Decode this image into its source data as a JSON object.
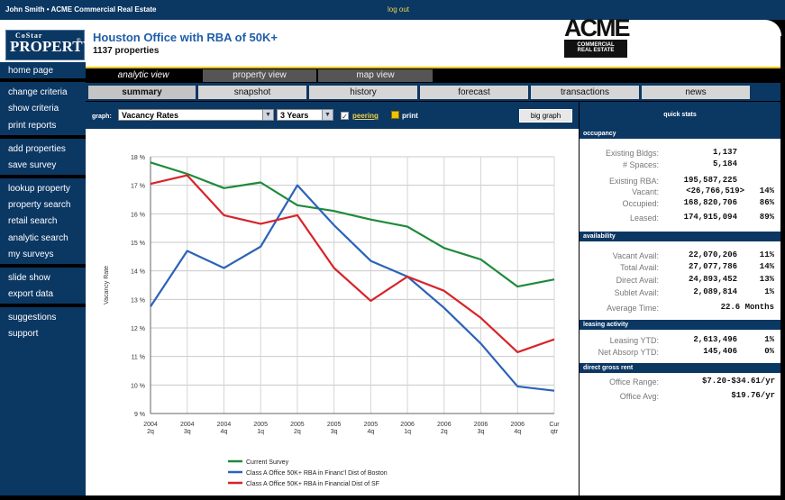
{
  "topbar": {
    "user": "John Smith • ACME Commercial Real Estate",
    "logout": "log out"
  },
  "header": {
    "title": "Houston Office with RBA of 50K+",
    "subtitle": "1137 properties",
    "costar_top": "CoStar",
    "costar_main": "PROPERTY",
    "acme_big": "ACME",
    "acme_line1": "COMMERCIAL",
    "acme_line2": "REAL ESTATE"
  },
  "sidebar": {
    "items": [
      "home page",
      "change criteria",
      "show criteria",
      "print reports",
      "add properties",
      "save survey",
      "lookup property",
      "property search",
      "retail search",
      "analytic search",
      "my surveys",
      "slide show",
      "export data",
      "suggestions",
      "support"
    ]
  },
  "nav1": {
    "tabs": [
      "analytic view",
      "property view",
      "map view"
    ],
    "active": 0
  },
  "nav2": {
    "tabs": [
      "summary",
      "snapshot",
      "history",
      "forecast",
      "transactions",
      "news"
    ],
    "active": 0
  },
  "toolbar": {
    "graph_label": "graph:",
    "graph_select": "Vacancy Rates",
    "years_select": "3 Years",
    "peering": "peering",
    "print": "print",
    "big_graph": "big graph"
  },
  "quickstats": {
    "title": "quick stats",
    "occupancy": {
      "header": "occupancy",
      "existing_bldgs_label": "Existing Bldgs:",
      "existing_bldgs": "1,137",
      "spaces_label": "# Spaces:",
      "spaces": "5,184",
      "rba_label": "Existing RBA:",
      "rba": "195,587,225",
      "vacant_label": "Vacant:",
      "vacant": "<26,766,519>",
      "vacant_pct": "14%",
      "occupied_label": "Occupied:",
      "occupied": "168,820,706",
      "occupied_pct": "86%",
      "leased_label": "Leased:",
      "leased": "174,915,094",
      "leased_pct": "89%"
    },
    "availability": {
      "header": "availability",
      "vacant_avail_label": "Vacant Avail:",
      "vacant_avail": "22,070,206",
      "vacant_avail_pct": "11%",
      "total_avail_label": "Total Avail:",
      "total_avail": "27,077,786",
      "total_avail_pct": "14%",
      "direct_avail_label": "Direct Avail:",
      "direct_avail": "24,893,452",
      "direct_avail_pct": "13%",
      "sublet_avail_label": "Sublet Avail:",
      "sublet_avail": "2,089,814",
      "sublet_avail_pct": "1%",
      "avg_time_label": "Average Time:",
      "avg_time": "22.6 Months"
    },
    "leasing": {
      "header": "leasing activity",
      "leasing_ytd_label": "Leasing YTD:",
      "leasing_ytd": "2,613,496",
      "leasing_ytd_pct": "1%",
      "net_absorp_label": "Net Absorp YTD:",
      "net_absorp": "145,406",
      "net_absorp_pct": "0%"
    },
    "rent": {
      "header": "direct gross rent",
      "office_range_label": "Office Range:",
      "office_range": "$7.20-$34.61/yr",
      "office_avg_label": "Office Avg:",
      "office_avg": "$19.76/yr"
    }
  },
  "chart_data": {
    "type": "line",
    "ylabel": "Vacancy Rate",
    "ylim": [
      9,
      18
    ],
    "ytick_labels": [
      "9 %",
      "10 %",
      "11 %",
      "12 %",
      "13 %",
      "14 %",
      "15 %",
      "16 %",
      "17 %",
      "18 %"
    ],
    "categories": [
      "2004 2q",
      "2004 3q",
      "2004 4q",
      "2005 1q",
      "2005 2q",
      "2005 3q",
      "2005 4q",
      "2006 1q",
      "2006 2q",
      "2006 3q",
      "2006 4q",
      "Cur qtr"
    ],
    "xtick_top": [
      "2004",
      "2004",
      "2004",
      "2005",
      "2005",
      "2005",
      "2005",
      "2006",
      "2006",
      "2006",
      "2006",
      "Cur"
    ],
    "xtick_bottom": [
      "2q",
      "3q",
      "4q",
      "1q",
      "2q",
      "3q",
      "4q",
      "1q",
      "2q",
      "3q",
      "4q",
      "qtr"
    ],
    "grid": true,
    "legend_position": "bottom",
    "series": [
      {
        "name": "Current Survey",
        "color": "#1f8a3a",
        "values": [
          17.8,
          17.4,
          16.9,
          17.1,
          16.3,
          16.1,
          15.8,
          15.55,
          14.8,
          14.4,
          13.45,
          13.7
        ]
      },
      {
        "name": "Class A Office 50K+ RBA in Financ'l Dist of Boston",
        "color": "#2b63b8",
        "values": [
          12.75,
          14.7,
          14.1,
          14.85,
          17.0,
          15.6,
          14.35,
          13.8,
          12.7,
          11.45,
          9.95,
          9.8
        ]
      },
      {
        "name": "Class A Office 50K+ RBA in Financial Dist of SF",
        "color": "#d8232a",
        "values": [
          17.05,
          17.35,
          15.95,
          15.65,
          15.95,
          14.1,
          12.95,
          13.8,
          13.3,
          12.35,
          11.15,
          11.6
        ]
      }
    ]
  }
}
